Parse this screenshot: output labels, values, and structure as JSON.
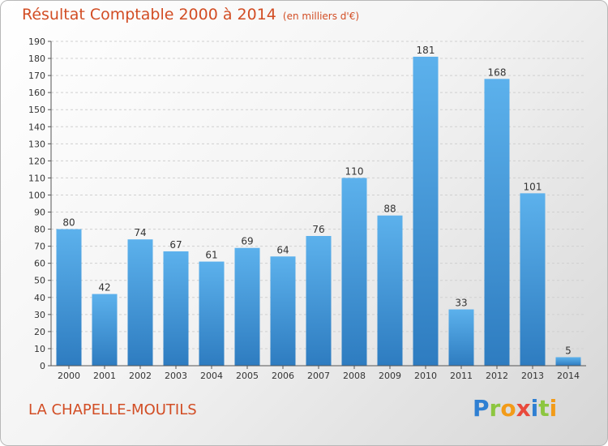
{
  "title": "Résultat Comptable 2000 à 2014",
  "subtitle": "(en milliers d'€)",
  "commune": "LA CHAPELLE-MOUTILS",
  "logo": {
    "text": "Proxiti"
  },
  "colors": {
    "title": "#d24d24",
    "bar_top": "#5cb1ec",
    "bar_bottom": "#2e7cc0"
  },
  "chart_data": {
    "type": "bar",
    "categories": [
      "2000",
      "2001",
      "2002",
      "2003",
      "2004",
      "2005",
      "2006",
      "2007",
      "2008",
      "2009",
      "2010",
      "2011",
      "2012",
      "2013",
      "2014"
    ],
    "values": [
      80,
      42,
      74,
      67,
      61,
      69,
      64,
      76,
      110,
      88,
      181,
      33,
      168,
      101,
      5
    ],
    "title": "Résultat Comptable 2000 à 2014",
    "ylim": [
      0,
      190
    ],
    "ytick_step": 10,
    "grid": true
  }
}
